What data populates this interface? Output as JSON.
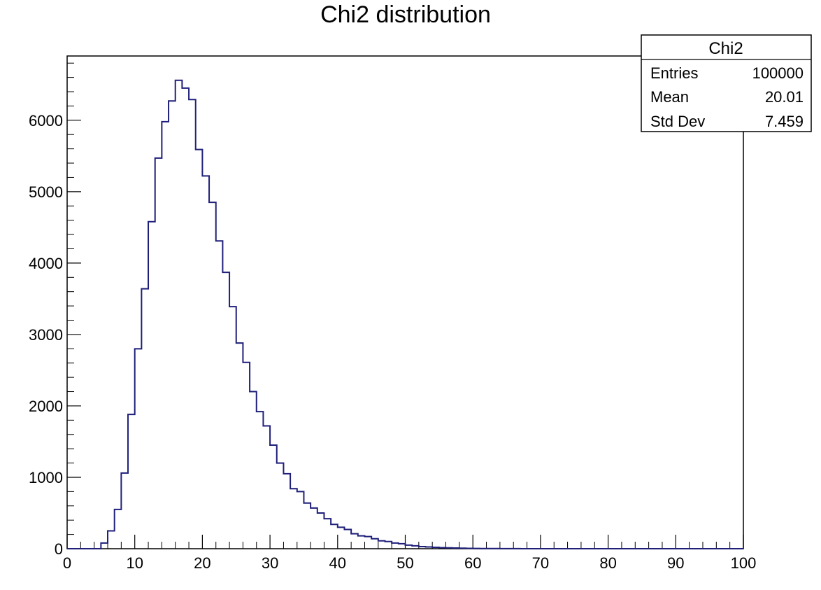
{
  "chart_data": {
    "type": "histogram",
    "title": "Chi2 distribution",
    "xlabel": "",
    "ylabel": "",
    "xlim": [
      0,
      100
    ],
    "ylim": [
      0,
      6900
    ],
    "bins": 100,
    "bin_width": 1,
    "grid": false,
    "legend": "top-right",
    "x_ticks": [
      0,
      10,
      20,
      30,
      40,
      50,
      60,
      70,
      80,
      90,
      100
    ],
    "y_ticks": [
      0,
      1000,
      2000,
      3000,
      4000,
      5000,
      6000
    ],
    "series": [
      {
        "name": "Chi2",
        "color": "#1f1f7a",
        "values": [
          0,
          0,
          0,
          0,
          0,
          80,
          250,
          550,
          1060,
          1880,
          2800,
          3640,
          4580,
          5470,
          5980,
          6270,
          6560,
          6450,
          6290,
          5590,
          5220,
          4850,
          4310,
          3870,
          3390,
          2880,
          2610,
          2200,
          1920,
          1720,
          1450,
          1200,
          1050,
          840,
          800,
          640,
          570,
          500,
          420,
          340,
          300,
          270,
          210,
          180,
          170,
          140,
          110,
          100,
          80,
          70,
          50,
          40,
          30,
          25,
          20,
          15,
          12,
          10,
          7,
          5,
          4,
          3,
          2,
          2,
          1,
          1,
          1,
          0,
          0,
          0,
          0,
          0,
          0,
          0,
          0,
          0,
          0,
          0,
          0,
          0,
          0,
          0,
          0,
          0,
          0,
          0,
          0,
          0,
          0,
          0,
          0,
          0,
          0,
          0,
          0,
          0,
          0,
          0,
          0,
          0
        ]
      }
    ],
    "stats_box": {
      "title": "Chi2",
      "rows": [
        {
          "label": "Entries",
          "value": "100000"
        },
        {
          "label": "Mean",
          "value": "20.01"
        },
        {
          "label": "Std Dev",
          "value": "7.459"
        }
      ]
    }
  }
}
